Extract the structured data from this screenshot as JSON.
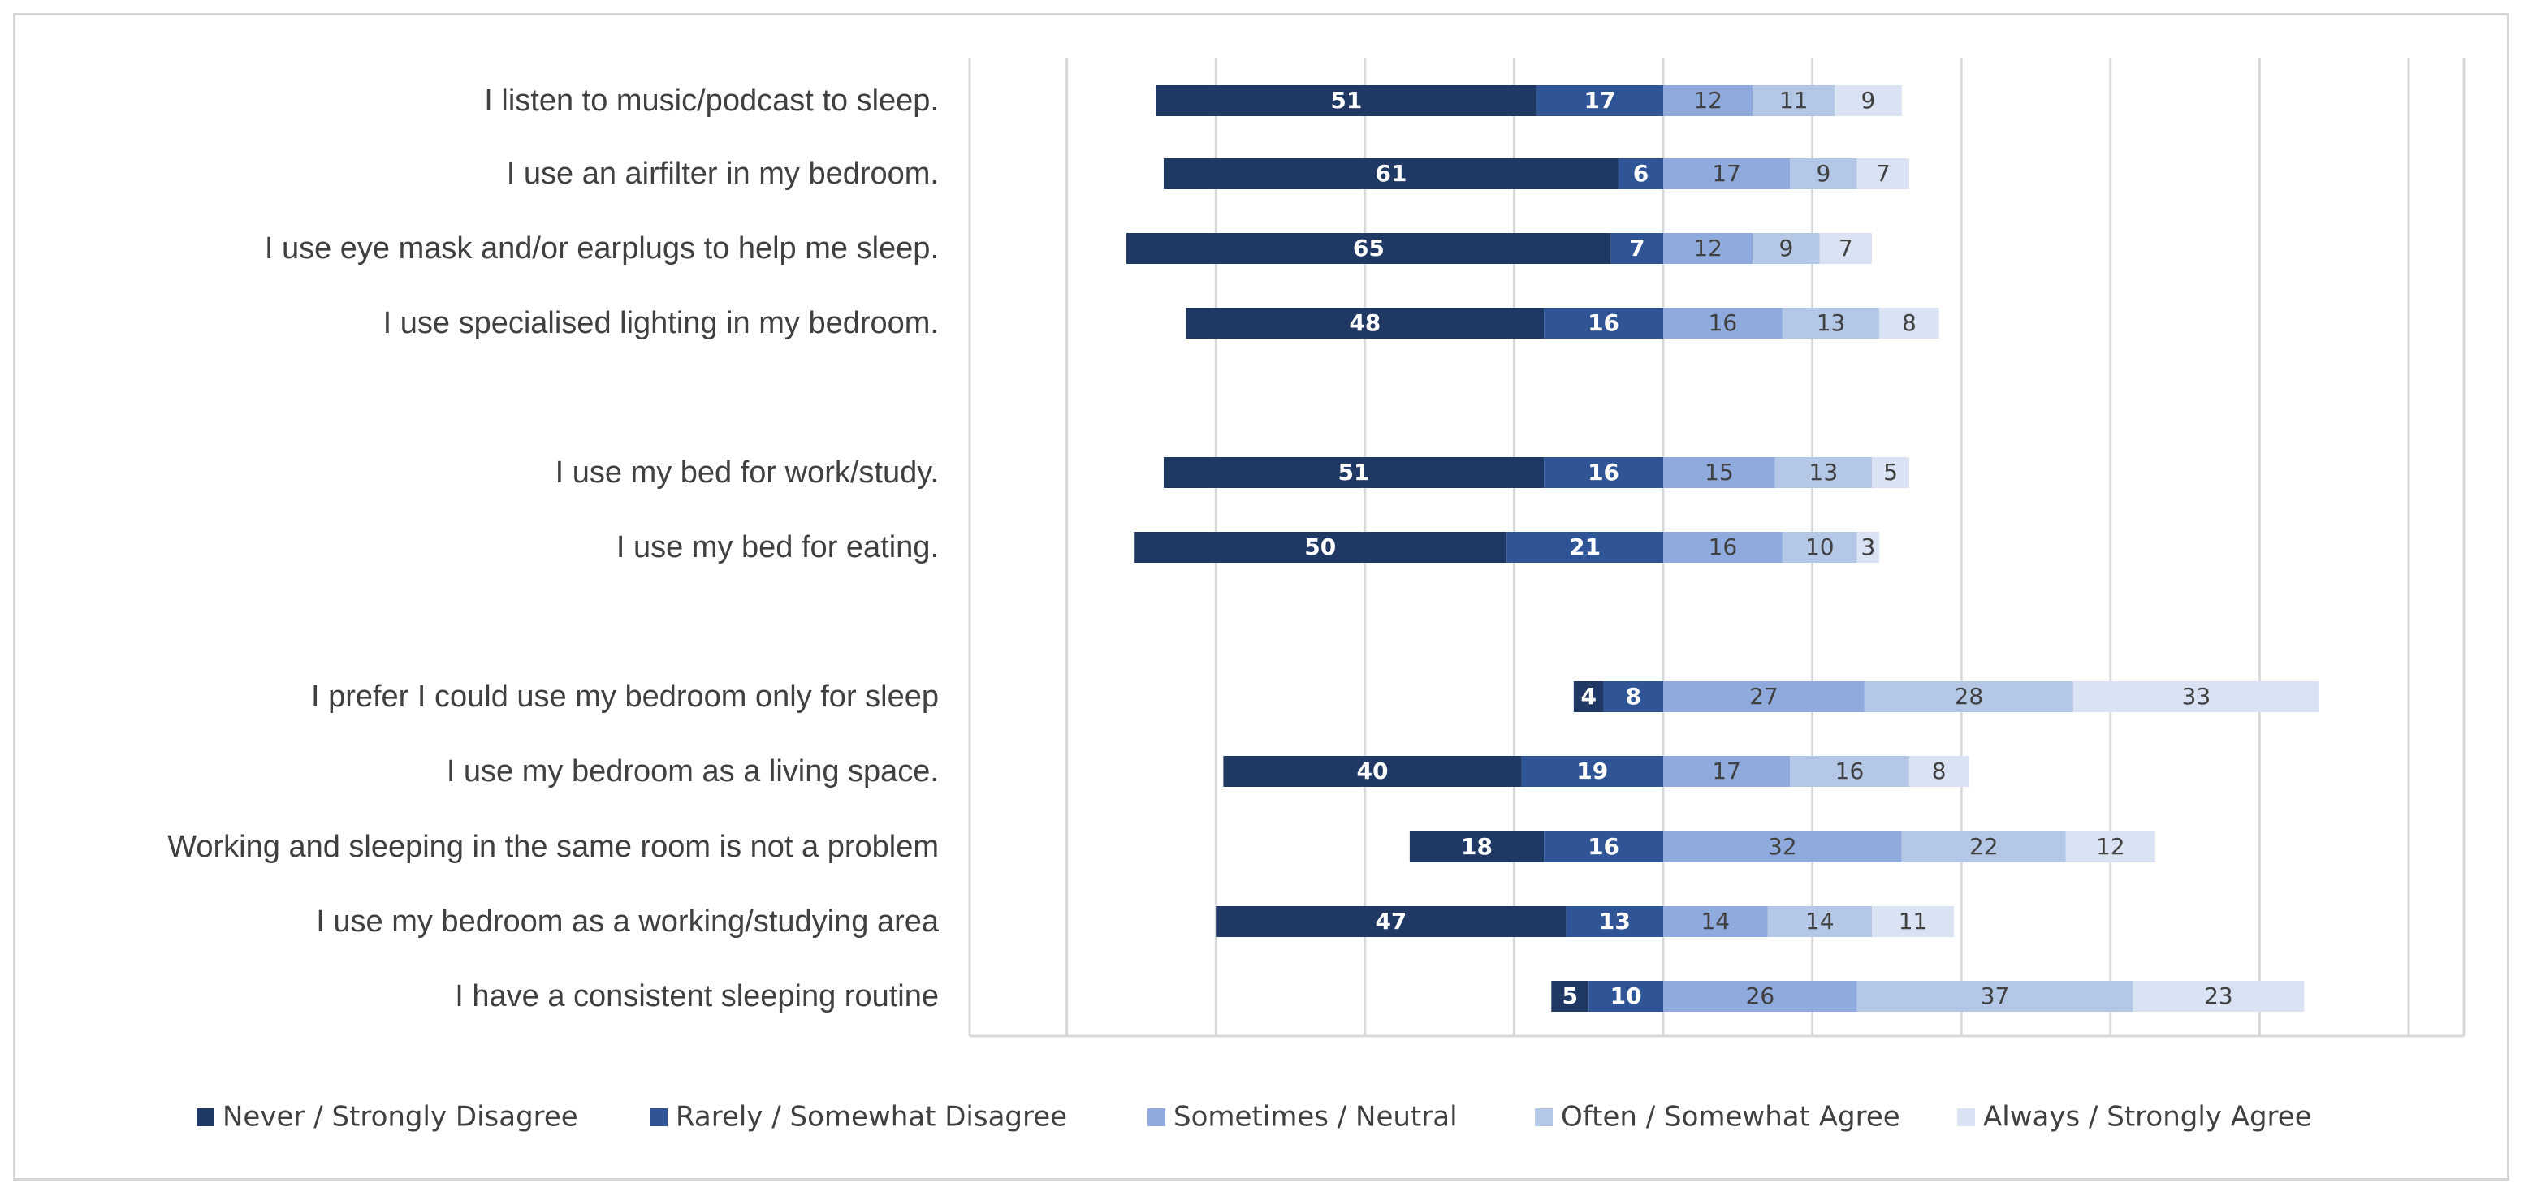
{
  "chart_data": {
    "type": "bar",
    "orientation": "horizontal",
    "stacked": true,
    "diverging": true,
    "title": "",
    "xlabel": "",
    "ylabel": "",
    "grid": true,
    "legend_position": "bottom",
    "categories": [
      "I listen to music/podcast to sleep.",
      "I use an airfilter in my bedroom.",
      "I use eye mask and/or earplugs to help me sleep.",
      "I use specialised lighting in my bedroom.",
      "I use my bed for work/study.",
      "I use my bed for eating.",
      "I prefer I could use my bedroom only for sleep",
      "I use my bedroom as a living space.",
      "Working and sleeping in the same room is not a problem",
      "I use my bedroom as a working/studying area",
      "I have a consistent sleeping routine"
    ],
    "series": [
      {
        "name": "Never / Strongly Disagree",
        "color": "#203864",
        "label_color": "#ffffff",
        "values": [
          51,
          61,
          65,
          48,
          51,
          50,
          4,
          40,
          18,
          47,
          5
        ]
      },
      {
        "name": "Rarely / Somewhat Disagree",
        "color": "#2f5597",
        "label_color": "#ffffff",
        "values": [
          17,
          6,
          7,
          16,
          16,
          21,
          8,
          19,
          16,
          13,
          10
        ]
      },
      {
        "name": "Sometimes / Neutral",
        "color": "#8faadc",
        "label_color": "#404040",
        "values": [
          12,
          17,
          12,
          16,
          15,
          16,
          27,
          17,
          32,
          14,
          26
        ]
      },
      {
        "name": "Often / Somewhat Agree",
        "color": "#b4c7e7",
        "label_color": "#404040",
        "values": [
          11,
          9,
          9,
          13,
          13,
          10,
          28,
          16,
          22,
          14,
          37
        ]
      },
      {
        "name": "Always / Strongly Agree",
        "color": "#dae3f3",
        "label_color": "#404040",
        "values": [
          9,
          7,
          7,
          8,
          5,
          3,
          33,
          8,
          12,
          11,
          23
        ]
      }
    ]
  }
}
